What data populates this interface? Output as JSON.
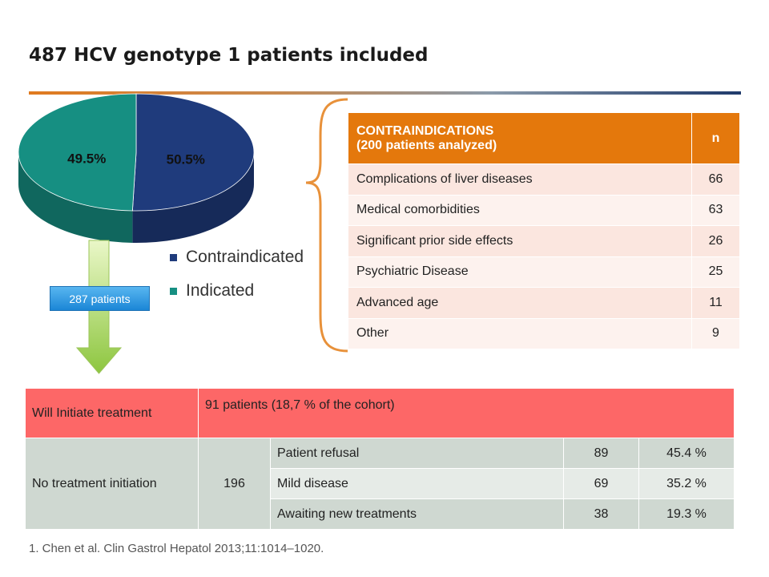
{
  "title": "487 HCV genotype 1 patients included",
  "arrow_label": "287 patients",
  "chart_data": {
    "type": "pie",
    "slices": [
      {
        "label": "Contraindicated",
        "value": 50.5,
        "value_label": "50.5%",
        "color": "#1f3b7c"
      },
      {
        "label": "Indicated",
        "value": 49.5,
        "value_label": "49.5%",
        "color": "#168f82"
      }
    ],
    "legend": "right"
  },
  "contra_table": {
    "header_line1": "CONTRAINDICATIONS",
    "header_line2": "(200 patients analyzed)",
    "header_n": "n",
    "rows": [
      {
        "label": "Complications of liver diseases",
        "n": "66"
      },
      {
        "label": "Medical comorbidities",
        "n": "63"
      },
      {
        "label": "Significant prior side effects",
        "n": "26"
      },
      {
        "label": "Psychiatric Disease",
        "n": "25"
      },
      {
        "label": "Advanced age",
        "n": "11"
      },
      {
        "label": "Other",
        "n": "9"
      }
    ]
  },
  "bottom_table": {
    "initiate_label": "Will Initiate treatment",
    "initiate_value": "91 patients (18,7 % of the cohort)",
    "no_treatment_label": "No treatment initiation",
    "no_treatment_count": "196",
    "rows": [
      {
        "reason": "Patient refusal",
        "n": "89",
        "pct": "45.4 %"
      },
      {
        "reason": "Mild disease",
        "n": "69",
        "pct": "35.2 %"
      },
      {
        "reason": "Awaiting new treatments",
        "n": "38",
        "pct": "19.3 %"
      }
    ]
  },
  "footnote": "1. Chen et al. Clin Gastrol Hepatol 2013;11:1014–1020."
}
